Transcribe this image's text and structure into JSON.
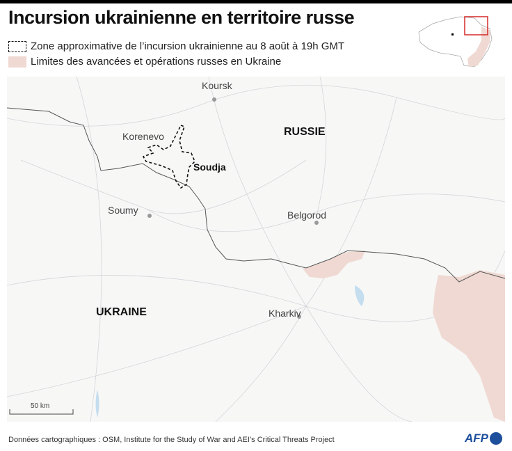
{
  "title": "Incursion ukrainienne en territoire russe",
  "legend": [
    {
      "label": "Zone approximative de l’incursion ukrainienne au 8 août à 19h GMT",
      "style": "dashed-outline"
    },
    {
      "label": "Limites des avancées et opérations russes en Ukraine",
      "color": "#efd9d2"
    }
  ],
  "map": {
    "countries": [
      "RUSSIE",
      "UKRAINE"
    ],
    "cities": [
      "Koursk",
      "Korenevo",
      "Soudja",
      "Soumy",
      "Belgorod",
      "Kharkiv"
    ],
    "scale_label": "50 km"
  },
  "footer": {
    "source": "Données cartographiques : OSM, Institute for the Study of War and AEI’s Critical Threats Project",
    "logo": "AFP"
  },
  "colors": {
    "occupied": "#efd9d2",
    "border": "#555555",
    "inset_frame": "#d62828",
    "brand": "#1d4f9c"
  }
}
